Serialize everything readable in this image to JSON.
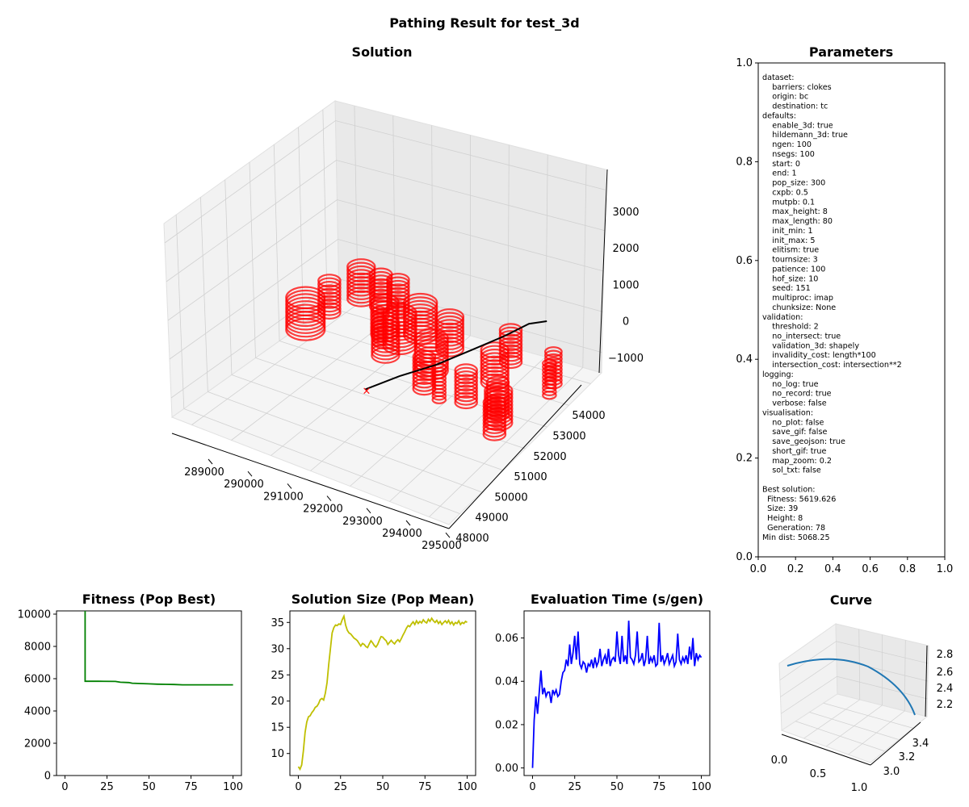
{
  "figure": {
    "suptitle": "Pathing Result for test_3d"
  },
  "parameters_panel": {
    "title": "Parameters",
    "lines": [
      "dataset:",
      "    barriers: clokes",
      "    origin: bc",
      "    destination: tc",
      "defaults:",
      "    enable_3d: true",
      "    hildemann_3d: true",
      "    ngen: 100",
      "    nsegs: 100",
      "    start: 0",
      "    end: 1",
      "    pop_size: 300",
      "    cxpb: 0.5",
      "    mutpb: 0.1",
      "    max_height: 8",
      "    max_length: 80",
      "    init_min: 1",
      "    init_max: 5",
      "    elitism: true",
      "    tournsize: 3",
      "    patience: 100",
      "    hof_size: 10",
      "    seed: 151",
      "    multiproc: imap",
      "    chunksize: None",
      "validation:",
      "    threshold: 2",
      "    no_intersect: true",
      "    validation_3d: shapely",
      "    invalidity_cost: length*100",
      "    intersection_cost: intersection**2",
      "logging:",
      "    no_log: true",
      "    no_record: true",
      "    verbose: false",
      "visualisation:",
      "    no_plot: false",
      "    save_gif: false",
      "    save_geojson: true",
      "    short_gif: true",
      "    map_zoom: 0.2",
      "    sol_txt: false",
      "",
      "Best solution:",
      "  Fitness: 5619.626",
      "  Size: 39",
      "  Height: 8",
      "  Generation: 78",
      "Min dist: 5068.25"
    ]
  },
  "chart_data": [
    {
      "type": "scatter",
      "projection": "3d",
      "title": "Solution",
      "x_ticks": [
        "289000",
        "290000",
        "291000",
        "292000",
        "293000",
        "294000",
        "295000"
      ],
      "y_ticks": [
        "48000",
        "49000",
        "50000",
        "51000",
        "52000",
        "53000",
        "54000"
      ],
      "z_ticks": [
        "−1000",
        "0",
        "1000",
        "2000",
        "3000"
      ],
      "barrier_color": "#ff0000",
      "path_color": "#000000",
      "barriers": [
        {
          "x": 289200,
          "y": 52700,
          "r": 200,
          "z0": -600,
          "z1": 300
        },
        {
          "x": 289400,
          "y": 53700,
          "r": 250,
          "z0": -600,
          "z1": 300
        },
        {
          "x": 289900,
          "y": 53700,
          "r": 200,
          "z0": -600,
          "z1": 300
        },
        {
          "x": 290300,
          "y": 53750,
          "r": 200,
          "z0": -600,
          "z1": 300
        },
        {
          "x": 289200,
          "y": 51700,
          "r": 350,
          "z0": -600,
          "z1": 300
        },
        {
          "x": 290600,
          "y": 52700,
          "r": 250,
          "z0": -600,
          "z1": 300
        },
        {
          "x": 291100,
          "y": 52500,
          "r": 300,
          "z0": -600,
          "z1": 300
        },
        {
          "x": 291200,
          "y": 53200,
          "r": 300,
          "z0": -600,
          "z1": 300
        },
        {
          "x": 292000,
          "y": 53100,
          "r": 250,
          "z0": -600,
          "z1": 300
        },
        {
          "x": 291100,
          "y": 51900,
          "r": 250,
          "z0": -600,
          "z1": 300
        },
        {
          "x": 292200,
          "y": 52000,
          "r": 300,
          "z0": -600,
          "z1": 300
        },
        {
          "x": 293300,
          "y": 53500,
          "r": 200,
          "z0": -600,
          "z1": 300
        },
        {
          "x": 293500,
          "y": 52500,
          "r": 250,
          "z0": -600,
          "z1": 300
        },
        {
          "x": 292500,
          "y": 51200,
          "r": 200,
          "z0": -600,
          "z1": 300
        },
        {
          "x": 294500,
          "y": 53300,
          "r": 150,
          "z0": -600,
          "z1": 300
        },
        {
          "x": 294700,
          "y": 52800,
          "r": 120,
          "z0": -600,
          "z1": 300
        },
        {
          "x": 293500,
          "y": 51300,
          "r": 200,
          "z0": -600,
          "z1": 300
        },
        {
          "x": 294300,
          "y": 51300,
          "r": 200,
          "z0": -600,
          "z1": 300
        },
        {
          "x": 294500,
          "y": 51000,
          "r": 250,
          "z0": -600,
          "z1": 300
        },
        {
          "x": 294700,
          "y": 50500,
          "r": 200,
          "z0": -600,
          "z1": 300
        },
        {
          "x": 293000,
          "y": 51000,
          "r": 120,
          "z0": -600,
          "z1": 300
        },
        {
          "x": 290700,
          "y": 52300,
          "r": 120,
          "z0": -600,
          "z1": 300
        }
      ],
      "path": {
        "x": [
          291800,
          292300,
          292800,
          293200,
          293500,
          293700,
          293850
        ],
        "y": [
          49900,
          50500,
          51200,
          52000,
          52900,
          53600,
          54100
        ],
        "z": [
          -300,
          0,
          200,
          400,
          500,
          600,
          500
        ]
      },
      "origin_marker": {
        "label": "×",
        "color": "#ff0000"
      }
    },
    {
      "type": "line",
      "title": "Fitness (Pop Best)",
      "color": "#008000",
      "xlim": [
        -5,
        105
      ],
      "ylim": [
        0,
        10200
      ],
      "x_ticks": [
        0,
        25,
        50,
        75,
        100
      ],
      "y_ticks": [
        0,
        2000,
        4000,
        6000,
        8000,
        10000
      ],
      "x": [
        12,
        12,
        13,
        20,
        30,
        33,
        38,
        40,
        45,
        50,
        55,
        60,
        65,
        70,
        80,
        90,
        100
      ],
      "y": [
        10200,
        5840,
        5840,
        5840,
        5830,
        5780,
        5760,
        5720,
        5700,
        5680,
        5660,
        5650,
        5640,
        5620,
        5620,
        5620,
        5620
      ]
    },
    {
      "type": "line",
      "title": "Solution Size (Pop Mean)",
      "color": "#bfbf00",
      "xlim": [
        -5,
        105
      ],
      "ylim": [
        5.8,
        37.2
      ],
      "x_ticks": [
        0,
        25,
        50,
        75,
        100
      ],
      "y_ticks": [
        10,
        15,
        20,
        25,
        30,
        35
      ],
      "x": [
        0,
        1,
        2,
        3,
        4,
        5,
        6,
        7,
        8,
        9,
        10,
        11,
        12,
        13,
        14,
        15,
        16,
        17,
        18,
        19,
        20,
        21,
        22,
        23,
        24,
        25,
        26,
        27,
        28,
        29,
        30,
        31,
        32,
        33,
        34,
        35,
        36,
        37,
        38,
        39,
        40,
        41,
        42,
        43,
        44,
        45,
        46,
        47,
        48,
        49,
        50,
        51,
        52,
        53,
        54,
        55,
        56,
        57,
        58,
        59,
        60,
        61,
        62,
        63,
        64,
        65,
        66,
        67,
        68,
        69,
        70,
        71,
        72,
        73,
        74,
        75,
        76,
        77,
        78,
        79,
        80,
        81,
        82,
        83,
        84,
        85,
        86,
        87,
        88,
        89,
        90,
        91,
        92,
        93,
        94,
        95,
        96,
        97,
        98,
        99,
        100
      ],
      "y": [
        7.5,
        7.0,
        7.8,
        10.5,
        14.0,
        16.0,
        17.0,
        17.2,
        17.8,
        18.2,
        18.8,
        19.0,
        19.5,
        20.3,
        20.5,
        20.2,
        21.5,
        23.5,
        27.0,
        30.0,
        33.0,
        34.0,
        34.5,
        34.4,
        34.7,
        34.6,
        35.5,
        36.2,
        34.5,
        33.5,
        33.0,
        32.8,
        32.4,
        32.0,
        31.8,
        31.5,
        31.0,
        30.5,
        31.0,
        30.8,
        30.4,
        30.2,
        30.9,
        31.5,
        31.1,
        30.6,
        30.3,
        30.8,
        31.6,
        32.3,
        32.2,
        31.8,
        31.5,
        30.8,
        31.2,
        31.6,
        31.2,
        30.9,
        31.4,
        31.7,
        31.3,
        31.9,
        32.6,
        33.2,
        33.9,
        34.4,
        34.2,
        34.7,
        35.1,
        34.6,
        35.3,
        34.8,
        35.2,
        34.9,
        35.5,
        35.1,
        34.9,
        35.6,
        35.2,
        35.8,
        35.3,
        35.0,
        35.4,
        34.8,
        35.2,
        34.6,
        35.0,
        35.3,
        34.9,
        35.4,
        34.7,
        35.1,
        34.5,
        35.0,
        34.8,
        35.3,
        34.6,
        35.0,
        34.8,
        35.2,
        35.0
      ]
    },
    {
      "type": "line",
      "title": "Evaluation Time (s/gen)",
      "color": "#0000ff",
      "xlim": [
        -5,
        105
      ],
      "ylim": [
        -0.0035,
        0.0725
      ],
      "x_ticks": [
        0,
        25,
        50,
        75,
        100
      ],
      "y_ticks": [
        "0.00",
        "0.02",
        "0.04",
        "0.06"
      ],
      "x": [
        0,
        1,
        2,
        3,
        4,
        5,
        6,
        7,
        8,
        9,
        10,
        11,
        12,
        13,
        14,
        15,
        16,
        17,
        18,
        19,
        20,
        21,
        22,
        23,
        24,
        25,
        26,
        27,
        28,
        29,
        30,
        31,
        32,
        33,
        34,
        35,
        36,
        37,
        38,
        39,
        40,
        41,
        42,
        43,
        44,
        45,
        46,
        47,
        48,
        49,
        50,
        51,
        52,
        53,
        54,
        55,
        56,
        57,
        58,
        59,
        60,
        61,
        62,
        63,
        64,
        65,
        66,
        67,
        68,
        69,
        70,
        71,
        72,
        73,
        74,
        75,
        76,
        77,
        78,
        79,
        80,
        81,
        82,
        83,
        84,
        85,
        86,
        87,
        88,
        89,
        90,
        91,
        92,
        93,
        94,
        95,
        96,
        97,
        98,
        99,
        100
      ],
      "y": [
        0.0,
        0.022,
        0.033,
        0.025,
        0.035,
        0.045,
        0.034,
        0.037,
        0.033,
        0.035,
        0.035,
        0.03,
        0.036,
        0.034,
        0.036,
        0.033,
        0.034,
        0.04,
        0.044,
        0.045,
        0.05,
        0.047,
        0.057,
        0.048,
        0.053,
        0.061,
        0.05,
        0.063,
        0.048,
        0.046,
        0.049,
        0.048,
        0.044,
        0.048,
        0.047,
        0.05,
        0.046,
        0.051,
        0.047,
        0.049,
        0.055,
        0.047,
        0.05,
        0.052,
        0.048,
        0.055,
        0.047,
        0.05,
        0.051,
        0.049,
        0.063,
        0.052,
        0.048,
        0.061,
        0.049,
        0.052,
        0.048,
        0.068,
        0.051,
        0.05,
        0.048,
        0.052,
        0.063,
        0.049,
        0.05,
        0.053,
        0.047,
        0.05,
        0.061,
        0.048,
        0.051,
        0.049,
        0.052,
        0.047,
        0.048,
        0.067,
        0.049,
        0.052,
        0.048,
        0.05,
        0.053,
        0.048,
        0.05,
        0.052,
        0.047,
        0.049,
        0.062,
        0.05,
        0.048,
        0.051,
        0.049,
        0.052,
        0.048,
        0.056,
        0.05,
        0.06,
        0.047,
        0.053,
        0.05,
        0.052,
        0.051
      ]
    },
    {
      "type": "line",
      "projection": "3d",
      "title": "Curve",
      "color": "#1f77b4",
      "x_ticks": [
        "0.0",
        "0.5",
        "1.0"
      ],
      "y_ticks": [
        "3.0",
        "3.2",
        "3.4"
      ],
      "z_ticks": [
        "2.2",
        "2.4",
        "2.6",
        "2.8"
      ]
    }
  ]
}
